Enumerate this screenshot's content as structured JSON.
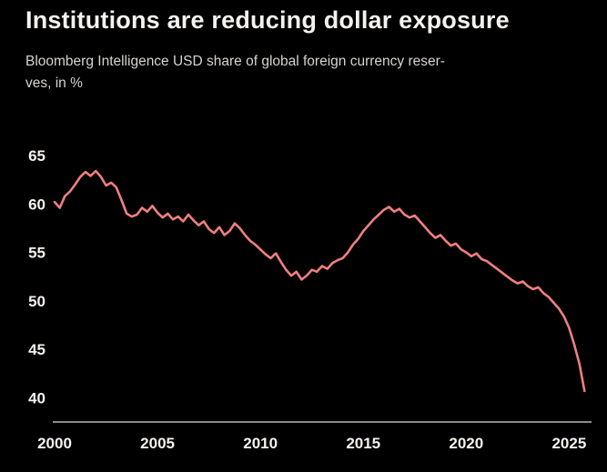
{
  "header": {
    "title": "Institutions are reducing dollar exposure",
    "subtitle_line1": "Bloomberg Intelligence USD share of global foreign currency reser-",
    "subtitle_line2": "ves, in %"
  },
  "colors": {
    "background": "#000000",
    "title": "#f5f3ef",
    "subtitle": "#d6d4d0",
    "line": "#ef7f7f",
    "axis_labels": "#f5f3ef",
    "axis_line": "#8a8a8a"
  },
  "chart_data": {
    "type": "line",
    "title": "Institutions are reducing dollar exposure",
    "subtitle": "Bloomberg Intelligence USD share of global foreign currency reserves, in %",
    "xlabel": "",
    "ylabel": "USD share of global foreign currency reserves, %",
    "xlim": [
      2000,
      2026
    ],
    "ylim": [
      37.5,
      66.5
    ],
    "xticks": [
      2000,
      2005,
      2010,
      2015,
      2020,
      2025
    ],
    "yticks": [
      40,
      45,
      50,
      55,
      60,
      65
    ],
    "grid": false,
    "legend": "none",
    "series": [
      {
        "name": "USD share of global foreign currency reserves (%)",
        "x_start": 2000,
        "x_step": 0.25,
        "values": [
          60.2,
          59.6,
          60.8,
          61.3,
          62.0,
          62.8,
          63.3,
          62.9,
          63.4,
          62.8,
          61.9,
          62.2,
          61.7,
          60.4,
          59.0,
          58.7,
          58.9,
          59.6,
          59.2,
          59.8,
          59.1,
          58.6,
          59.0,
          58.4,
          58.7,
          58.2,
          58.9,
          58.3,
          57.8,
          58.2,
          57.4,
          57.0,
          57.6,
          56.8,
          57.2,
          58.0,
          57.5,
          56.8,
          56.2,
          55.8,
          55.3,
          54.8,
          54.4,
          54.9,
          54.0,
          53.2,
          52.6,
          53.0,
          52.2,
          52.6,
          53.2,
          53.0,
          53.6,
          53.3,
          53.9,
          54.2,
          54.4,
          55.0,
          55.8,
          56.4,
          57.2,
          57.8,
          58.4,
          58.9,
          59.4,
          59.7,
          59.2,
          59.5,
          58.9,
          58.6,
          58.8,
          58.2,
          57.6,
          57.0,
          56.5,
          56.8,
          56.2,
          55.7,
          55.9,
          55.3,
          55.0,
          54.6,
          54.9,
          54.3,
          54.1,
          53.7,
          53.3,
          52.9,
          52.5,
          52.1,
          51.8,
          52.0,
          51.5,
          51.2,
          51.4,
          50.8,
          50.4,
          49.8,
          49.2,
          48.4,
          47.2,
          45.5,
          43.5,
          40.7
        ]
      }
    ]
  }
}
